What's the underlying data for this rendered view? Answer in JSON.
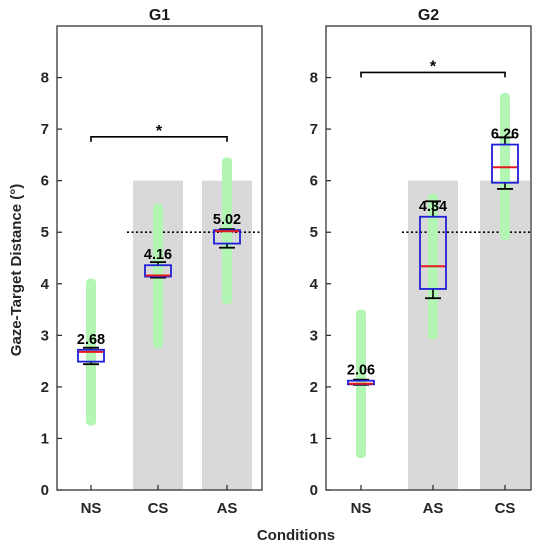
{
  "chart_data": {
    "type": "box",
    "xlabel": "Conditions",
    "ylabel": "Gaze-Target Distance (°)",
    "ylim": [
      0,
      9
    ],
    "yticks": [
      0,
      1,
      2,
      3,
      4,
      5,
      6,
      7,
      8
    ],
    "panels": [
      {
        "title": "G1",
        "categories": [
          "NS",
          "CS",
          "AS"
        ],
        "shaded_categories": [
          "CS",
          "AS"
        ],
        "shade_top": 6,
        "reference_line": 5,
        "significance": {
          "from": "NS",
          "to": "AS",
          "y": 6.85,
          "mark": "*"
        },
        "boxes": [
          {
            "category": "NS",
            "median": 2.68,
            "q1": 2.49,
            "q3": 2.72,
            "whisker_low": 2.44,
            "whisker_high": 2.76,
            "range_low": 1.25,
            "range_high": 4.1,
            "label": "2.68"
          },
          {
            "category": "CS",
            "median": 4.16,
            "q1": 4.14,
            "q3": 4.36,
            "whisker_low": 4.12,
            "whisker_high": 4.42,
            "range_low": 2.75,
            "range_high": 5.55,
            "label": "4.16"
          },
          {
            "category": "AS",
            "median": 5.02,
            "q1": 4.78,
            "q3": 5.04,
            "whisker_low": 4.7,
            "whisker_high": 5.06,
            "range_low": 3.6,
            "range_high": 6.45,
            "label": "5.02"
          }
        ]
      },
      {
        "title": "G2",
        "categories": [
          "NS",
          "AS",
          "CS"
        ],
        "shaded_categories": [
          "AS",
          "CS"
        ],
        "shade_top": 6,
        "reference_line": 5,
        "significance": {
          "from": "NS",
          "to": "CS",
          "y": 8.1,
          "mark": "*"
        },
        "boxes": [
          {
            "category": "NS",
            "median": 2.06,
            "q1": 2.05,
            "q3": 2.12,
            "whisker_low": 2.04,
            "whisker_high": 2.14,
            "range_low": 0.62,
            "range_high": 3.5,
            "label": "2.06"
          },
          {
            "category": "AS",
            "median": 4.34,
            "q1": 3.9,
            "q3": 5.3,
            "whisker_low": 3.72,
            "whisker_high": 5.6,
            "range_low": 2.92,
            "range_high": 5.75,
            "label": "4.34"
          },
          {
            "category": "CS",
            "median": 6.26,
            "q1": 5.96,
            "q3": 6.7,
            "whisker_low": 5.84,
            "whisker_high": 6.84,
            "range_low": 4.85,
            "range_high": 7.7,
            "label": "6.26"
          }
        ]
      }
    ],
    "colors": {
      "box": "#1f1fd6",
      "median": "#e31a1c",
      "whisker": "#000000",
      "range": "#b3f5b3",
      "shade": "#d9d9d9",
      "reference_line": "#000000"
    }
  }
}
